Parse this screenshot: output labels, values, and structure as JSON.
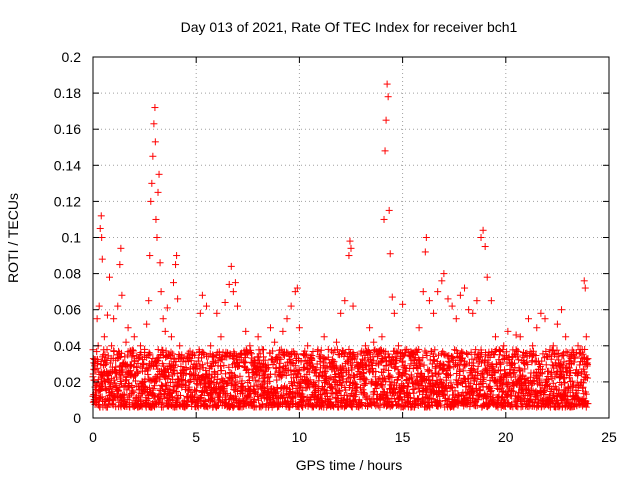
{
  "chart_data": {
    "type": "scatter",
    "title": "Day 013 of 2021, Rate Of TEC Index for receiver bch1",
    "xlabel": "GPS time / hours",
    "ylabel": "ROTI / TECUs",
    "xlim": [
      0,
      25
    ],
    "ylim": [
      0,
      0.2
    ],
    "xticks": [
      0,
      5,
      10,
      15,
      20,
      25
    ],
    "xtick_labels": [
      "0",
      "5",
      "10",
      "15",
      "20",
      "25"
    ],
    "yticks": [
      0,
      0.02,
      0.04,
      0.06,
      0.08,
      0.1,
      0.12,
      0.14,
      0.16,
      0.18,
      0.2
    ],
    "ytick_labels": [
      "0",
      "0.02",
      "0.04",
      "0.06",
      "0.08",
      "0.1",
      "0.12",
      "0.14",
      "0.16",
      "0.18",
      "0.2"
    ],
    "grid": true,
    "marker": "plus",
    "color": "#ff0000",
    "series": [
      {
        "points": [
          [
            0.05,
            0.021
          ],
          [
            0.1,
            0.03
          ],
          [
            0.15,
            0.018
          ],
          [
            0.2,
            0.055
          ],
          [
            0.25,
            0.04
          ],
          [
            0.3,
            0.062
          ],
          [
            0.35,
            0.105
          ],
          [
            0.4,
            0.112
          ],
          [
            0.42,
            0.1
          ],
          [
            0.45,
            0.088
          ],
          [
            0.5,
            0.035
          ],
          [
            0.55,
            0.045
          ],
          [
            0.6,
            0.02
          ],
          [
            0.7,
            0.057
          ],
          [
            0.8,
            0.078
          ],
          [
            0.9,
            0.04
          ],
          [
            1.0,
            0.055
          ],
          [
            1.1,
            0.032
          ],
          [
            1.2,
            0.062
          ],
          [
            1.3,
            0.085
          ],
          [
            1.35,
            0.094
          ],
          [
            1.4,
            0.068
          ],
          [
            1.5,
            0.03
          ],
          [
            1.6,
            0.042
          ],
          [
            1.7,
            0.05
          ],
          [
            1.8,
            0.024
          ],
          [
            1.9,
            0.036
          ],
          [
            2.0,
            0.045
          ],
          [
            2.1,
            0.028
          ],
          [
            2.2,
            0.033
          ],
          [
            2.3,
            0.04
          ],
          [
            2.4,
            0.026
          ],
          [
            2.5,
            0.038
          ],
          [
            2.6,
            0.052
          ],
          [
            2.7,
            0.065
          ],
          [
            2.75,
            0.09
          ],
          [
            2.8,
            0.12
          ],
          [
            2.85,
            0.13
          ],
          [
            2.9,
            0.145
          ],
          [
            2.95,
            0.163
          ],
          [
            3.0,
            0.172
          ],
          [
            3.02,
            0.153
          ],
          [
            3.05,
            0.11
          ],
          [
            3.1,
            0.1
          ],
          [
            3.15,
            0.125
          ],
          [
            3.2,
            0.135
          ],
          [
            3.25,
            0.086
          ],
          [
            3.3,
            0.07
          ],
          [
            3.4,
            0.055
          ],
          [
            3.5,
            0.048
          ],
          [
            3.6,
            0.061
          ],
          [
            3.7,
            0.03
          ],
          [
            3.8,
            0.045
          ],
          [
            3.9,
            0.075
          ],
          [
            4.0,
            0.085
          ],
          [
            4.05,
            0.09
          ],
          [
            4.1,
            0.066
          ],
          [
            4.2,
            0.04
          ],
          [
            4.3,
            0.035
          ],
          [
            4.5,
            0.028
          ],
          [
            4.7,
            0.033
          ],
          [
            5.0,
            0.03
          ],
          [
            5.2,
            0.058
          ],
          [
            5.3,
            0.068
          ],
          [
            5.5,
            0.062
          ],
          [
            5.7,
            0.04
          ],
          [
            5.9,
            0.025
          ],
          [
            6.0,
            0.058
          ],
          [
            6.2,
            0.045
          ],
          [
            6.4,
            0.064
          ],
          [
            6.6,
            0.074
          ],
          [
            6.7,
            0.084
          ],
          [
            6.8,
            0.07
          ],
          [
            6.9,
            0.075
          ],
          [
            7.0,
            0.062
          ],
          [
            7.2,
            0.036
          ],
          [
            7.4,
            0.048
          ],
          [
            7.6,
            0.04
          ],
          [
            7.8,
            0.032
          ],
          [
            8.0,
            0.045
          ],
          [
            8.2,
            0.038
          ],
          [
            8.4,
            0.028
          ],
          [
            8.6,
            0.05
          ],
          [
            8.8,
            0.042
          ],
          [
            9.0,
            0.035
          ],
          [
            9.2,
            0.048
          ],
          [
            9.4,
            0.055
          ],
          [
            9.6,
            0.062
          ],
          [
            9.8,
            0.07
          ],
          [
            9.9,
            0.072
          ],
          [
            10.0,
            0.05
          ],
          [
            10.2,
            0.028
          ],
          [
            10.4,
            0.04
          ],
          [
            10.6,
            0.032
          ],
          [
            10.8,
            0.025
          ],
          [
            11.0,
            0.035
          ],
          [
            11.2,
            0.045
          ],
          [
            11.4,
            0.038
          ],
          [
            11.6,
            0.03
          ],
          [
            11.8,
            0.042
          ],
          [
            12.0,
            0.058
          ],
          [
            12.2,
            0.065
          ],
          [
            12.4,
            0.09
          ],
          [
            12.45,
            0.098
          ],
          [
            12.5,
            0.094
          ],
          [
            12.6,
            0.062
          ],
          [
            12.8,
            0.035
          ],
          [
            13.0,
            0.03
          ],
          [
            13.2,
            0.04
          ],
          [
            13.4,
            0.05
          ],
          [
            13.6,
            0.042
          ],
          [
            13.8,
            0.035
          ],
          [
            14.0,
            0.045
          ],
          [
            14.1,
            0.11
          ],
          [
            14.15,
            0.148
          ],
          [
            14.2,
            0.165
          ],
          [
            14.25,
            0.185
          ],
          [
            14.3,
            0.178
          ],
          [
            14.35,
            0.115
          ],
          [
            14.4,
            0.091
          ],
          [
            14.5,
            0.067
          ],
          [
            14.6,
            0.058
          ],
          [
            14.8,
            0.04
          ],
          [
            15.0,
            0.063
          ],
          [
            15.2,
            0.038
          ],
          [
            15.4,
            0.03
          ],
          [
            15.6,
            0.035
          ],
          [
            15.8,
            0.05
          ],
          [
            16.0,
            0.07
          ],
          [
            16.1,
            0.092
          ],
          [
            16.15,
            0.1
          ],
          [
            16.3,
            0.065
          ],
          [
            16.5,
            0.058
          ],
          [
            16.7,
            0.07
          ],
          [
            16.9,
            0.076
          ],
          [
            17.0,
            0.08
          ],
          [
            17.2,
            0.066
          ],
          [
            17.4,
            0.062
          ],
          [
            17.6,
            0.055
          ],
          [
            17.8,
            0.068
          ],
          [
            18.0,
            0.072
          ],
          [
            18.2,
            0.06
          ],
          [
            18.4,
            0.058
          ],
          [
            18.6,
            0.065
          ],
          [
            18.8,
            0.1
          ],
          [
            18.9,
            0.104
          ],
          [
            19.0,
            0.095
          ],
          [
            19.1,
            0.078
          ],
          [
            19.3,
            0.065
          ],
          [
            19.5,
            0.045
          ],
          [
            19.7,
            0.035
          ],
          [
            19.9,
            0.04
          ],
          [
            20.1,
            0.048
          ],
          [
            20.3,
            0.03
          ],
          [
            20.5,
            0.046
          ],
          [
            20.7,
            0.045
          ],
          [
            20.9,
            0.03
          ],
          [
            21.1,
            0.055
          ],
          [
            21.3,
            0.04
          ],
          [
            21.5,
            0.05
          ],
          [
            21.7,
            0.058
          ],
          [
            21.9,
            0.055
          ],
          [
            22.1,
            0.035
          ],
          [
            22.3,
            0.04
          ],
          [
            22.5,
            0.052
          ],
          [
            22.7,
            0.06
          ],
          [
            22.9,
            0.045
          ],
          [
            23.1,
            0.03
          ],
          [
            23.3,
            0.035
          ],
          [
            23.5,
            0.04
          ],
          [
            23.7,
            0.038
          ],
          [
            23.8,
            0.076
          ],
          [
            23.85,
            0.072
          ],
          [
            23.9,
            0.045
          ]
        ]
      }
    ],
    "background_band": {
      "min": 0.006,
      "max": 0.038
    }
  }
}
